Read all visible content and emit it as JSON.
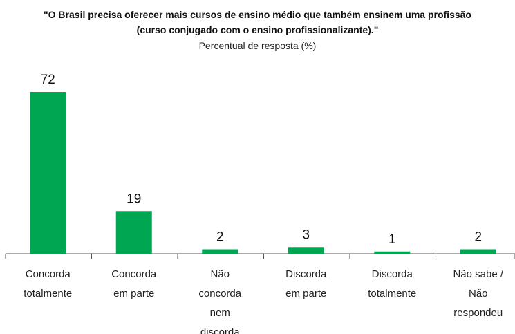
{
  "chart_data": {
    "type": "bar",
    "title": "\"O Brasil precisa oferecer mais cursos de ensino médio que também ensinem uma profissão\n(curso conjugado com o ensino profissionalizante).\"",
    "subtitle": "Percentual de resposta (%)",
    "categories": [
      "Concorda totalmente",
      "Concorda em parte",
      "Não concorda nem discorda",
      "Discorda em parte",
      "Discorda totalmente",
      "Não sabe / Não respondeu"
    ],
    "values": [
      72,
      19,
      2,
      3,
      1,
      2
    ],
    "color": "#00a651"
  }
}
